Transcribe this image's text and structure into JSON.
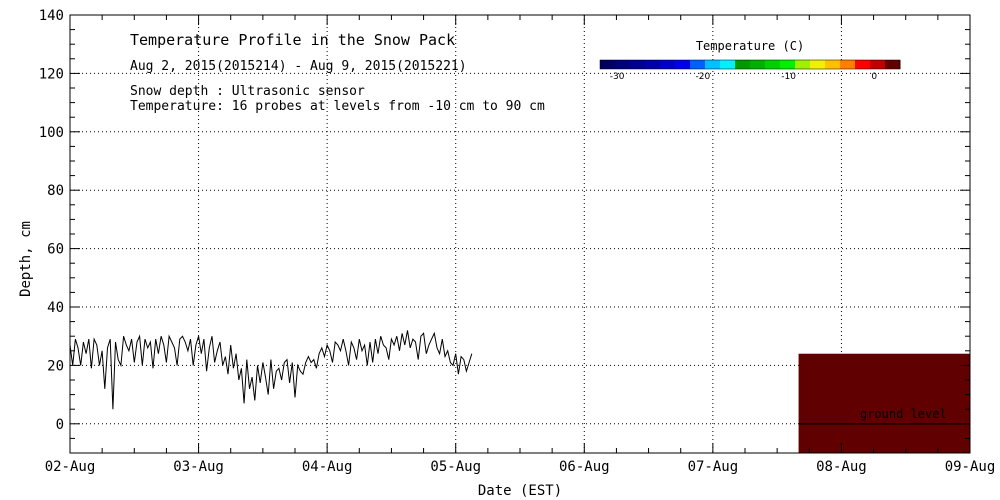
{
  "chart_data": {
    "type": "line",
    "title": "Temperature Profile in the Snow Pack",
    "subtitle": "Aug  2, 2015(2015214) - Aug  9, 2015(2015221)",
    "notes": [
      "Snow depth : Ultrasonic sensor",
      "Temperature: 16 probes at levels from -10 cm to 90 cm"
    ],
    "xlabel": "Date (EST)",
    "ylabel": "Depth, cm",
    "xlim": [
      "2015-08-02",
      "2015-08-09"
    ],
    "ylim": [
      -10,
      140
    ],
    "x_ticks": [
      "02-Aug",
      "03-Aug",
      "04-Aug",
      "05-Aug",
      "06-Aug",
      "07-Aug",
      "08-Aug",
      "09-Aug"
    ],
    "y_ticks": [
      0,
      20,
      40,
      60,
      80,
      100,
      120,
      140
    ],
    "grid": true,
    "colorbar": {
      "title": "Temperature (C)",
      "ticks": [
        "-30",
        "-20",
        "-10",
        "0"
      ],
      "range": [
        -32,
        3
      ],
      "colors": [
        "#000060",
        "#000078",
        "#000090",
        "#0000a8",
        "#0000c8",
        "#0000f0",
        "#0060ff",
        "#00c0ff",
        "#00f0ff",
        "#009900",
        "#00b000",
        "#00d000",
        "#00f000",
        "#a0f000",
        "#f0f000",
        "#ffc000",
        "#ff8000",
        "#ff0000",
        "#c00000",
        "#600000"
      ]
    },
    "ground_level": {
      "label": "ground level",
      "y": 0
    },
    "temperature_block": {
      "x_start": "2015-08-07T16:00",
      "x_end": "2015-08-09T00:00",
      "y_bottom": -10,
      "y_top": 24,
      "color": "#600000"
    },
    "series": [
      {
        "x_start": "2015-08-02T00:00",
        "step_hours": 0.5,
        "values": [
          27,
          20,
          29,
          26,
          20,
          28,
          24,
          29,
          19,
          29,
          27,
          20,
          25,
          12,
          26,
          29,
          5,
          28,
          22,
          20,
          30,
          27,
          25,
          29,
          21,
          28,
          30,
          20,
          29,
          26,
          28,
          19,
          29,
          24,
          30,
          27,
          21,
          30,
          28,
          26,
          20,
          29,
          30,
          28,
          25,
          29,
          20,
          27,
          30,
          24,
          29,
          18,
          26,
          30,
          21,
          25,
          28,
          20,
          23,
          17,
          27,
          19,
          24,
          15,
          19,
          7,
          22,
          12,
          16,
          8,
          20,
          14,
          21,
          16,
          10,
          22,
          12,
          18,
          19,
          15,
          21,
          22,
          14,
          21,
          9,
          20,
          18,
          17,
          21,
          23,
          21,
          22,
          19,
          24,
          26,
          23,
          27,
          25,
          21,
          28,
          27,
          25,
          29,
          25,
          20,
          28,
          26,
          22,
          29,
          25,
          27,
          20,
          28,
          21,
          29,
          24,
          30,
          27,
          26,
          22,
          29,
          27,
          30,
          25,
          31,
          27,
          32,
          26,
          29,
          28,
          22,
          30,
          31,
          24,
          27,
          29,
          31,
          26,
          24,
          29,
          23,
          25,
          21,
          20,
          24,
          17,
          23,
          22,
          18,
          21,
          24
        ]
      }
    ]
  }
}
